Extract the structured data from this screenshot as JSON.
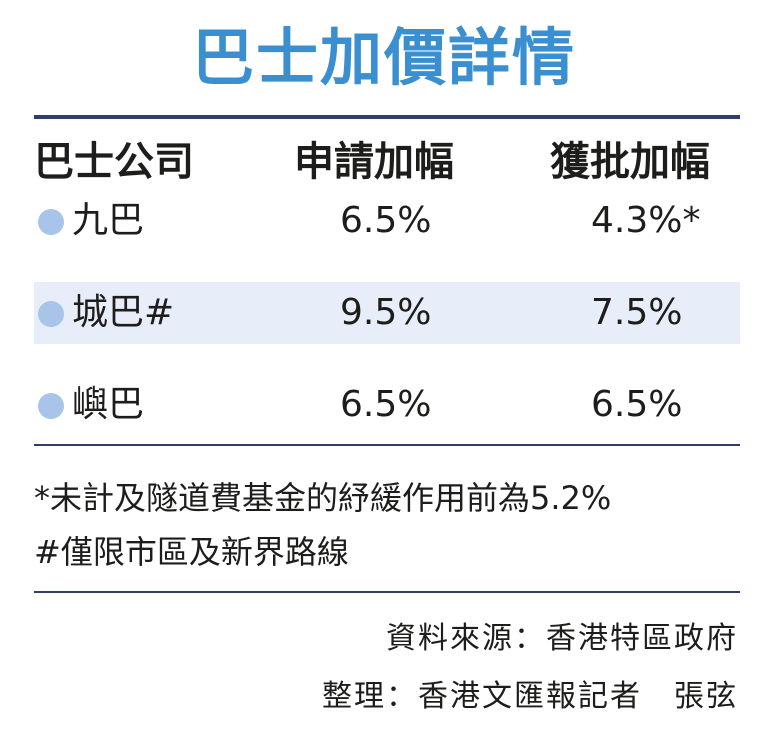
{
  "title": "巴士加價詳情",
  "table": {
    "headers": [
      "巴士公司",
      "申請加幅",
      "獲批加幅"
    ],
    "rows": [
      {
        "company": "九巴",
        "applied": "6.5%",
        "approved": "4.3%*"
      },
      {
        "company": "城巴#",
        "applied": "9.5%",
        "approved": "7.5%"
      },
      {
        "company": "嶼巴",
        "applied": "6.5%",
        "approved": "6.5%"
      }
    ]
  },
  "notes": [
    "*未計及隧道費基金的紓緩作用前為5.2%",
    "#僅限市區及新界路線"
  ],
  "credits": {
    "source": "資料來源：香港特區政府",
    "compiled": "整理：香港文匯報記者　張弦"
  },
  "colors": {
    "title": "#3a8fd0",
    "rule": "#2f3f66",
    "row_shade": "#e8eef9",
    "dot": "#a8c4e8"
  }
}
